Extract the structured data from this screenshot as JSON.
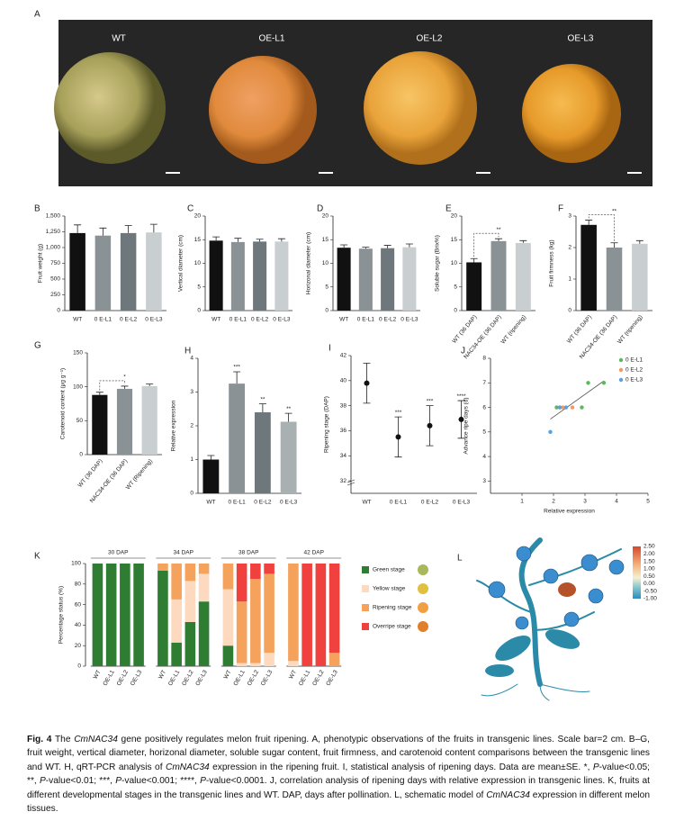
{
  "panel_a": {
    "letter": "A",
    "labels": [
      "WT",
      "OE-L1",
      "OE-L2",
      "OE-L3"
    ]
  },
  "chart_data": [
    {
      "type": "bar",
      "panel": "B",
      "ylabel": "Fruit weight (g)",
      "categories": [
        "WT",
        "0 E-L1",
        "0 E-L2",
        "0 E-L3"
      ],
      "values": [
        1230,
        1190,
        1230,
        1240
      ],
      "errors": [
        130,
        120,
        120,
        130
      ],
      "colors": [
        "#111111",
        "#8a9296",
        "#6e777b",
        "#c9cfd0"
      ],
      "ylim": [
        0,
        1500
      ],
      "yticks": [
        0,
        250,
        500,
        750,
        {
          "value": 1000,
          "label": "1,000"
        },
        {
          "value": 1250,
          "label": "1,250"
        },
        {
          "value": 1500,
          "label": "1,500"
        }
      ]
    },
    {
      "type": "bar",
      "panel": "C",
      "ylabel": "Vertical diameter (cm)",
      "categories": [
        "WT",
        "0 E-L1",
        "0 E-L2",
        "0 E-L3"
      ],
      "values": [
        14.8,
        14.5,
        14.6,
        14.6
      ],
      "errors": [
        0.8,
        0.8,
        0.5,
        0.6
      ],
      "colors": [
        "#111111",
        "#8a9296",
        "#6e777b",
        "#c9cfd0"
      ],
      "ylim": [
        0,
        20
      ],
      "yticks": [
        0,
        5,
        10,
        15,
        20
      ]
    },
    {
      "type": "bar",
      "panel": "D",
      "ylabel": "Horizonal diameter (cm)",
      "categories": [
        "WT",
        "0 E-L1",
        "0 E-L2",
        "0 E-L3"
      ],
      "values": [
        13.3,
        13.1,
        13.2,
        13.4
      ],
      "errors": [
        0.6,
        0.3,
        0.6,
        0.7
      ],
      "colors": [
        "#111111",
        "#8a9296",
        "#6e777b",
        "#c9cfd0"
      ],
      "ylim": [
        0,
        20
      ],
      "yticks": [
        0,
        5,
        10,
        15,
        20
      ]
    },
    {
      "type": "bar",
      "panel": "E",
      "ylabel": "Soluble sugar (Brix%)",
      "categories": [
        "WT (36 DAP)",
        "NAC34-OE (36 DAP)",
        "WT (ripening)"
      ],
      "values": [
        10.2,
        14.7,
        14.3
      ],
      "errors": [
        0.8,
        0.5,
        0.5
      ],
      "colors": [
        "#111111",
        "#8a9296",
        "#c9cfd0"
      ],
      "ylim": [
        0,
        20
      ],
      "yticks": [
        0,
        5,
        10,
        15,
        20
      ],
      "bracket": "**"
    },
    {
      "type": "bar",
      "panel": "F",
      "ylabel": "Fruit firmness (kg)",
      "categories": [
        "WT (36 DAP)",
        "NAC34-OE (36 DAP)",
        "WT (ripening)"
      ],
      "values": [
        2.72,
        2.0,
        2.12
      ],
      "errors": [
        0.15,
        0.15,
        0.1
      ],
      "colors": [
        "#111111",
        "#8a9296",
        "#c9cfd0"
      ],
      "ylim": [
        0,
        3
      ],
      "yticks": [
        0,
        1,
        2,
        3
      ],
      "bracket": "**"
    },
    {
      "type": "bar",
      "panel": "G",
      "ylabel": "Carotenoid content (μg g⁻¹)",
      "categories": [
        "WT (36 DAP)",
        "NAC34-OE (36 DAP)",
        "WT (Ripening)"
      ],
      "values": [
        88,
        97,
        101
      ],
      "errors": [
        4,
        4,
        3
      ],
      "colors": [
        "#111111",
        "#8a9296",
        "#c9cfd0"
      ],
      "ylim": [
        0,
        150
      ],
      "yticks": [
        0,
        50,
        100,
        150
      ],
      "bracket": "*"
    },
    {
      "type": "bar",
      "panel": "H",
      "ylabel": "Relative expression",
      "categories": [
        "WT",
        "0 E-L1",
        "0 E-L2",
        "0 E-L3"
      ],
      "values": [
        1,
        3.25,
        2.4,
        2.12
      ],
      "errors": [
        0.12,
        0.35,
        0.25,
        0.25
      ],
      "colors": [
        "#111111",
        "#8a9296",
        "#6e777b",
        "#a9b0b2"
      ],
      "ylim": [
        0,
        4
      ],
      "yticks": [
        0,
        1,
        2,
        3,
        4
      ],
      "annotations": [
        null,
        "***",
        "**",
        "**"
      ]
    },
    {
      "type": "dot",
      "panel": "I",
      "ylabel": "Ripening stage (DAP)",
      "categories": [
        "WT",
        "0 E-L1",
        "0 E-L2",
        "0 E-L3"
      ],
      "values": [
        39.8,
        35.5,
        36.4,
        36.9
      ],
      "errors": [
        1.6,
        1.6,
        1.6,
        1.5
      ],
      "ylim": [
        31,
        42
      ],
      "yticks": [
        32,
        34,
        36,
        38,
        40,
        42
      ],
      "annotations": [
        null,
        "***",
        "***",
        "****"
      ]
    },
    {
      "type": "scatter",
      "panel": "J",
      "ylabel": "Advance ripe days (d)",
      "xlabel": "Relative expression",
      "xlim": [
        0,
        5
      ],
      "xticks": [
        1,
        2,
        3,
        4,
        5
      ],
      "ylim": [
        2.5,
        8
      ],
      "yticks": [
        3,
        4,
        5,
        6,
        7,
        8
      ],
      "series": [
        {
          "name": "0 E-L1",
          "color": "#5cb85c",
          "x": [
            2.1,
            2.9,
            3.1,
            3.6
          ],
          "values": [
            6,
            6,
            7,
            7
          ]
        },
        {
          "name": "0 E-L2",
          "color": "#f39a5a",
          "x": [
            2.2,
            2.3,
            2.6
          ],
          "values": [
            6,
            6,
            6
          ]
        },
        {
          "name": "0 E-L3",
          "color": "#5aa0e0",
          "x": [
            1.9,
            2.2,
            2.4
          ],
          "values": [
            5,
            6,
            6
          ]
        }
      ]
    },
    {
      "type": "stacked_bar",
      "panel": "K",
      "ylabel": "Percentage status (%)",
      "groups": [
        "30 DAP",
        "34 DAP",
        "38 DAP",
        "42 DAP"
      ],
      "categories": [
        "WT",
        "OE-L1",
        "OE-L2",
        "OE-L3"
      ],
      "ylim": [
        0,
        100
      ],
      "yticks": [
        0,
        20,
        40,
        60,
        80,
        100
      ],
      "series": [
        {
          "name": "Green stage",
          "color": "#2e7d32",
          "values": [
            [
              100,
              100,
              100,
              100
            ],
            [
              93,
              23,
              43,
              63
            ],
            [
              20,
              0,
              0,
              0
            ],
            [
              0,
              0,
              0,
              0
            ]
          ]
        },
        {
          "name": "Yellow stage",
          "color": "#fcd9bf",
          "values": [
            [
              0,
              0,
              0,
              0
            ],
            [
              0,
              42,
              40,
              27
            ],
            [
              55,
              3,
              3,
              13
            ],
            [
              5,
              0,
              0,
              0
            ]
          ]
        },
        {
          "name": "Ripening stage",
          "color": "#f5a25d",
          "values": [
            [
              0,
              0,
              0,
              0
            ],
            [
              7,
              35,
              17,
              10
            ],
            [
              25,
              60,
              82,
              77
            ],
            [
              95,
              0,
              0,
              13
            ]
          ]
        },
        {
          "name": "Overripe stage",
          "color": "#f0413f",
          "values": [
            [
              0,
              0,
              0,
              0
            ],
            [
              0,
              0,
              0,
              0
            ],
            [
              0,
              37,
              15,
              10
            ],
            [
              0,
              100,
              100,
              87
            ]
          ]
        }
      ]
    }
  ],
  "panel_l": {
    "letter": "L",
    "scale_ticks": [
      {
        "value": 2.5,
        "label": "2.50"
      },
      {
        "value": 2,
        "label": "2.00"
      },
      {
        "value": 1.5,
        "label": "1.50"
      },
      {
        "value": 1,
        "label": "1.00"
      },
      {
        "value": 0.5,
        "label": "0.50"
      },
      {
        "value": 0,
        "label": "0.00"
      },
      {
        "value": -0.5,
        "label": "-0.50"
      },
      {
        "value": -1,
        "label": "-1.00"
      }
    ],
    "scale_lim": [
      -1,
      2.5
    ]
  },
  "caption": [
    {
      "text": "Fig. 4",
      "bold": true
    },
    {
      "text": " The "
    },
    {
      "text": "CmNAC34",
      "italic": true
    },
    {
      "text": " gene positively regulates melon fruit ripening.  A, phenotypic observations of the fruits in transgenic lines. Scale bar=2 cm.  B–G, fruit weight, vertical diameter, horizonal diameter, soluble sugar content, fruit firmness, and carotenoid content comparisons between the transgenic lines and WT.  H, qRT-PCR analysis of "
    },
    {
      "text": "CmNAC34",
      "italic": true
    },
    {
      "text": " expression in the ripening fruit.  I, statistical analysis of ripening days.  Data are mean±SE.  *, "
    },
    {
      "text": "P",
      "italic": true
    },
    {
      "text": "-value<0.05; **, "
    },
    {
      "text": "P",
      "italic": true
    },
    {
      "text": "-value<0.01; ***, "
    },
    {
      "text": "P",
      "italic": true
    },
    {
      "text": "-value<0.001; ****, "
    },
    {
      "text": "P",
      "italic": true
    },
    {
      "text": "-value<0.0001.  J, correlation analysis of ripening days with relative expression in transgenic lines.  K, fruits at different developmental stages in the transgenic lines and WT.  DAP, days after pollination.  L, schematic model of "
    },
    {
      "text": "CmNAC34",
      "italic": true
    },
    {
      "text": " expression in different melon tissues."
    }
  ]
}
